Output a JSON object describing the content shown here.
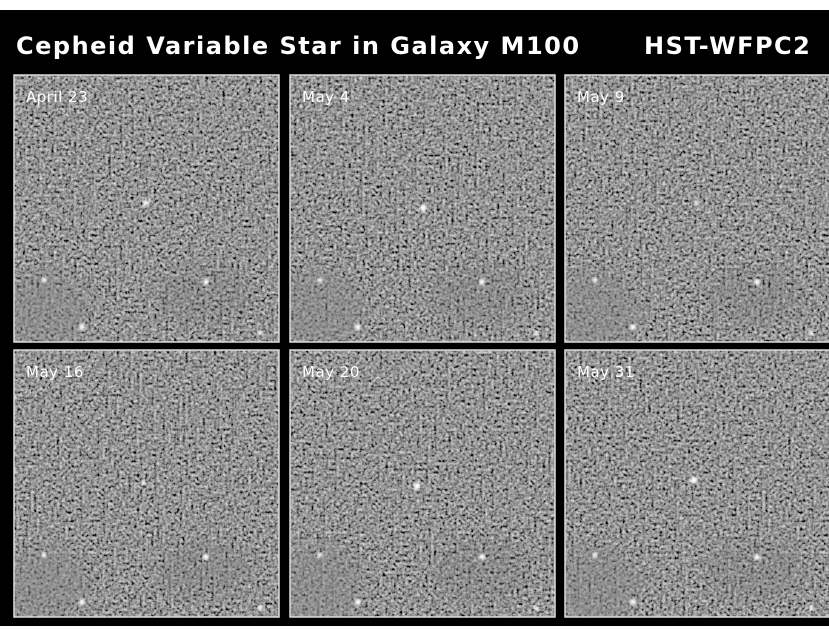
{
  "header": {
    "title": "Cepheid Variable Star in Galaxy M100",
    "instrument": "HST-WFPC2"
  },
  "panels": [
    {
      "label": "April 23"
    },
    {
      "label": "May 4"
    },
    {
      "label": "May 9"
    },
    {
      "label": "May 16"
    },
    {
      "label": "May 20"
    },
    {
      "label": "May 31"
    }
  ]
}
